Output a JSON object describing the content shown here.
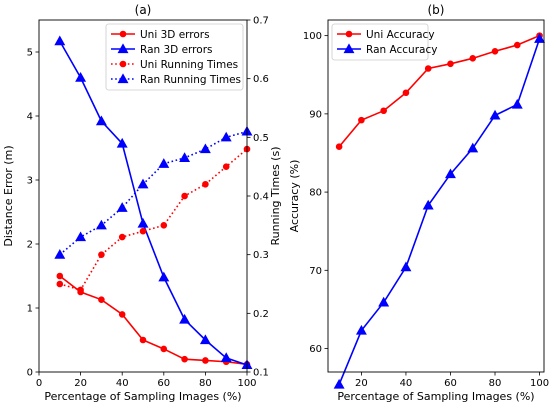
{
  "chart_data": [
    {
      "type": "line",
      "title": "(a)",
      "xlabel": "Percentage of Sampling Images (%)",
      "ylabel": "Distance Error (m)",
      "y2label": "Running Times (s)",
      "xlim": [
        0,
        100
      ],
      "ylim": [
        0,
        5.5
      ],
      "y2lim": [
        0.1,
        0.7
      ],
      "xticks": [
        0,
        20,
        40,
        60,
        80,
        100
      ],
      "yticks": [
        0,
        1,
        2,
        3,
        4,
        5
      ],
      "y2ticks": [
        0.1,
        0.2,
        0.3,
        0.4,
        0.5,
        0.6,
        0.7
      ],
      "x": [
        10,
        20,
        30,
        40,
        50,
        60,
        70,
        80,
        90,
        100
      ],
      "legend_position": "top-right",
      "series": [
        {
          "name": "Uni 3D errors",
          "axis": "left",
          "color": "#ff0000",
          "style": "solid",
          "marker": "circle",
          "values": [
            1.5,
            1.25,
            1.13,
            0.9,
            0.5,
            0.36,
            0.2,
            0.18,
            0.16,
            0.12
          ]
        },
        {
          "name": "Ran 3D errors",
          "axis": "left",
          "color": "#0000ff",
          "style": "solid",
          "marker": "triangle",
          "values": [
            5.17,
            4.6,
            3.92,
            3.57,
            2.32,
            1.48,
            0.82,
            0.5,
            0.22,
            0.11
          ]
        },
        {
          "name": "Uni Running Times",
          "axis": "right",
          "color": "#ff0000",
          "style": "dotted",
          "marker": "circle",
          "values": [
            0.25,
            0.24,
            0.3,
            0.33,
            0.34,
            0.35,
            0.4,
            0.42,
            0.45,
            0.48
          ]
        },
        {
          "name": "Ran Running Times",
          "axis": "right",
          "color": "#0000ff",
          "style": "dotted",
          "marker": "triangle",
          "values": [
            0.3,
            0.33,
            0.35,
            0.38,
            0.42,
            0.455,
            0.465,
            0.48,
            0.5,
            0.51
          ]
        }
      ]
    },
    {
      "type": "line",
      "title": "(b)",
      "xlabel": "Percentage of Sampling Images (%)",
      "ylabel": "Accuracy (%)",
      "xlim": [
        5,
        102
      ],
      "ylim": [
        57,
        102
      ],
      "xticks": [
        20,
        40,
        60,
        80,
        100
      ],
      "yticks": [
        60,
        70,
        80,
        90,
        100
      ],
      "x": [
        10,
        20,
        30,
        40,
        50,
        60,
        70,
        80,
        90,
        100
      ],
      "legend_position": "top-left",
      "series": [
        {
          "name": "Uni Accuracy",
          "color": "#ff0000",
          "style": "solid",
          "marker": "circle",
          "values": [
            85.8,
            89.2,
            90.4,
            92.7,
            95.8,
            96.4,
            97.1,
            98.0,
            98.8,
            100.0
          ]
        },
        {
          "name": "Ran Accuracy",
          "color": "#0000ff",
          "style": "solid",
          "marker": "triangle",
          "values": [
            55.4,
            62.3,
            65.9,
            70.4,
            78.3,
            82.3,
            85.6,
            89.8,
            91.2,
            99.6
          ]
        }
      ]
    }
  ]
}
